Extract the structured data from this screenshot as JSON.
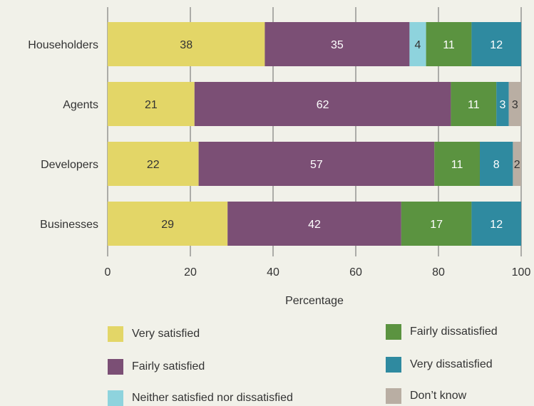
{
  "chart_data": {
    "type": "bar",
    "orientation": "horizontal",
    "stacked": true,
    "categories": [
      "Householders",
      "Agents",
      "Developers",
      "Businesses"
    ],
    "series": [
      {
        "name": "Very satisfied",
        "color": "#e3d667",
        "label_color": "#333333",
        "values": [
          38,
          21,
          22,
          29
        ]
      },
      {
        "name": "Fairly satisfied",
        "color": "#7b4f75",
        "label_color": "#ffffff",
        "values": [
          35,
          62,
          57,
          42
        ]
      },
      {
        "name": "Neither satisfied nor dissatisfied",
        "color": "#8ed3dd",
        "label_color": "#333333",
        "values": [
          4,
          0,
          0,
          0
        ]
      },
      {
        "name": "Fairly dissatisfied",
        "color": "#5b9340",
        "label_color": "#ffffff",
        "values": [
          11,
          11,
          11,
          17
        ]
      },
      {
        "name": "Very dissatisfied",
        "color": "#2f8aa0",
        "label_color": "#ffffff",
        "values": [
          12,
          3,
          8,
          12
        ]
      },
      {
        "name": "Don’t know",
        "color": "#b9aea3",
        "label_color": "#333333",
        "values": [
          0,
          3,
          2,
          0
        ]
      }
    ],
    "xlabel": "Percentage",
    "ylabel": "",
    "xlim": [
      0,
      100
    ],
    "xticks": [
      0,
      20,
      40,
      60,
      80,
      100
    ],
    "grid": true,
    "legend_position": "bottom"
  }
}
